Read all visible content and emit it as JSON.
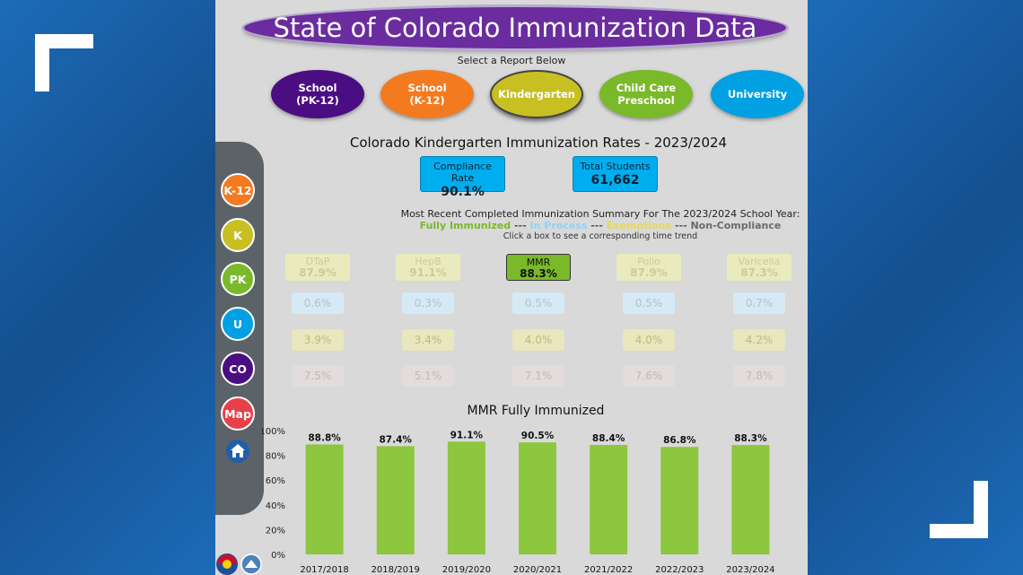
{
  "title": "State of Colorado Immunization Data",
  "select_label": "Select a Report Below",
  "report_buttons": [
    {
      "label": "School\n(PK-12)",
      "color": "#4b0e82",
      "active": false
    },
    {
      "label": "School\n(K-12)",
      "color": "#f47a20",
      "active": false
    },
    {
      "label": "Kindergarten",
      "color": "#c8c022",
      "active": true
    },
    {
      "label": "Child Care\nPreschool",
      "color": "#7ab929",
      "active": false
    },
    {
      "label": "University",
      "color": "#00a0e3",
      "active": false
    }
  ],
  "heading": "Colorado Kindergarten Immunization Rates - 2023/2024",
  "kpis": [
    {
      "label": "Compliance Rate",
      "value": "90.1%"
    },
    {
      "label": "Total Students",
      "value": "61,662"
    }
  ],
  "summary": {
    "title": "Most Recent Completed  Immunization Summary For The 2023/2024 School Year:",
    "fully_immunized": "Fully Immunized",
    "in_process": "In Process",
    "exemptions": "Exemptions",
    "non_compliance": "Non-Compliance",
    "separator": " --- ",
    "hint": "Click a box to see a corresponding time trend"
  },
  "vaccines": [
    {
      "name": "DTaP",
      "fully": "87.9%",
      "in_process": "0.6%",
      "exemptions": "3.9%",
      "non_compliance": "7.5%",
      "selected": false
    },
    {
      "name": "HepB",
      "fully": "91.1%",
      "in_process": "0.3%",
      "exemptions": "3.4%",
      "non_compliance": "5.1%",
      "selected": false
    },
    {
      "name": "MMR",
      "fully": "88.3%",
      "in_process": "0.5%",
      "exemptions": "4.0%",
      "non_compliance": "7.1%",
      "selected": true
    },
    {
      "name": "Polio",
      "fully": "87.9%",
      "in_process": "0.5%",
      "exemptions": "4.0%",
      "non_compliance": "7.6%",
      "selected": false
    },
    {
      "name": "Varicella",
      "fully": "87.3%",
      "in_process": "0.7%",
      "exemptions": "4.2%",
      "non_compliance": "7.8%",
      "selected": false
    }
  ],
  "sidebar": [
    {
      "label": "K-12",
      "color": "#f47a20"
    },
    {
      "label": "K",
      "color": "#c8c022"
    },
    {
      "label": "PK",
      "color": "#7ab929"
    },
    {
      "label": "U",
      "color": "#00a0e3"
    },
    {
      "label": "CO",
      "color": "#4b0e82"
    },
    {
      "label": "Map",
      "color": "#e8404a"
    }
  ],
  "icons": {
    "home": "home-icon",
    "logos": "colorado-state-logos"
  },
  "colors": {
    "panel": "#d9d9d9",
    "bar": "#8dc63f",
    "title_pill": "#6a2c9e",
    "kpi": "#00aeef"
  },
  "chart_data": {
    "type": "bar",
    "title": "MMR Fully Immunized",
    "categories": [
      "2017/2018",
      "2018/2019",
      "2019/2020",
      "2020/2021",
      "2021/2022",
      "2022/2023",
      "2023/2024"
    ],
    "values": [
      88.8,
      87.4,
      91.1,
      90.5,
      88.4,
      86.8,
      88.3
    ],
    "value_labels": [
      "88.8%",
      "87.4%",
      "91.1%",
      "90.5%",
      "88.4%",
      "86.8%",
      "88.3%"
    ],
    "yticks": [
      "0%",
      "20%",
      "40%",
      "60%",
      "80%",
      "100%"
    ],
    "ylim": [
      0,
      100
    ],
    "xlabel": "",
    "ylabel": "",
    "grid": false
  }
}
